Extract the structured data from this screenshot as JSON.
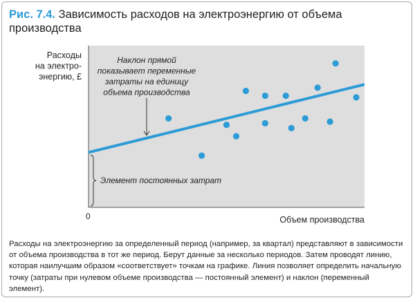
{
  "figure": {
    "number": "Рис. 7.4.",
    "title": "Зависимость расходов на электроэнергию от объема производства"
  },
  "chart_data": {
    "type": "scatter",
    "ylabel_lines": [
      "Расходы",
      "на электро-",
      "энергию, £"
    ],
    "xlabel": "Объем производства",
    "origin_label": "0",
    "xlim": [
      0,
      100
    ],
    "ylim": [
      0,
      100
    ],
    "grid": false,
    "points": [
      {
        "x": 29,
        "y": 55
      },
      {
        "x": 41,
        "y": 32
      },
      {
        "x": 50,
        "y": 51
      },
      {
        "x": 53.5,
        "y": 44
      },
      {
        "x": 57,
        "y": 72
      },
      {
        "x": 64,
        "y": 52
      },
      {
        "x": 64,
        "y": 69
      },
      {
        "x": 71.5,
        "y": 69
      },
      {
        "x": 73.5,
        "y": 49
      },
      {
        "x": 78.5,
        "y": 55
      },
      {
        "x": 83,
        "y": 74
      },
      {
        "x": 87.5,
        "y": 53
      },
      {
        "x": 89.5,
        "y": 89
      },
      {
        "x": 97,
        "y": 68
      }
    ],
    "trend_line": {
      "intercept": 34,
      "slope": 0.42
    },
    "annotations": {
      "slope": [
        "Наклон прямой",
        "показывает переменные",
        "затраты на единицу",
        "объема производства"
      ],
      "fixed": "Элемент постоянных затрат"
    },
    "colors": {
      "background": "#dedede",
      "points": "#2c9bd6",
      "line": "#2c9bd6",
      "axis": "#555555"
    }
  },
  "caption": "Расходы на электроэнергию за определенный период (например, за квартал) представляют в зависимости от объема производства в тот же период. Берут данные за несколько периодов. Затем проводят линию, которая наилучшим образом «соответствует» точкам на графике. Линия позволяет определить начальную точку (затраты при нулевом объеме производства — постоянный элемент) и наклон (переменный элемент)."
}
